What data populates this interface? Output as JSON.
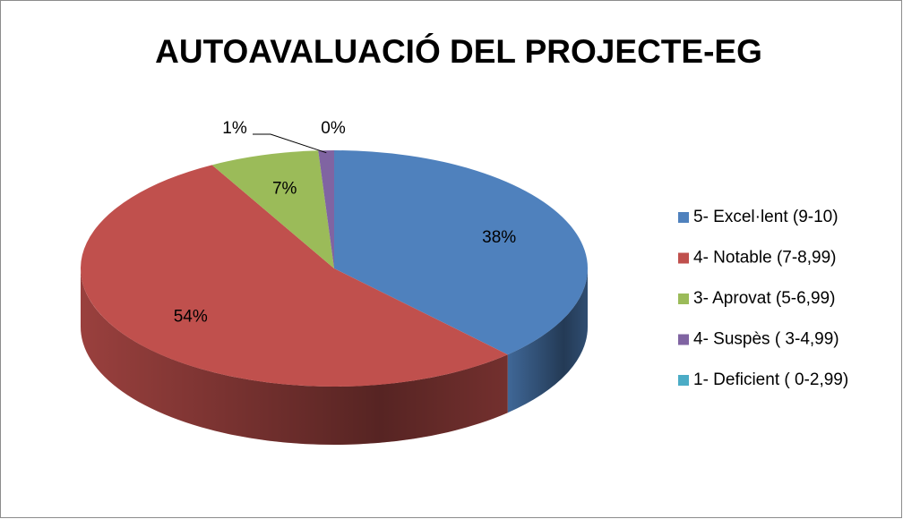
{
  "chart_data": {
    "type": "pie",
    "title": "AUTOAVALUACIÓ DEL PROJECTE-EG",
    "categories": [
      "5- Excel·lent (9-10)",
      "4- Notable (7-8,99)",
      "3- Aprovat (5-6,99)",
      "4- Suspès ( 3-4,99)",
      "1- Deficient ( 0-2,99)"
    ],
    "values": [
      38,
      54,
      7,
      1,
      0
    ],
    "value_labels": [
      "38%",
      "54%",
      "7%",
      "1%",
      "0%"
    ],
    "colors": [
      "#4f81bd",
      "#c0504d",
      "#9bbb59",
      "#8064a2",
      "#4bacc6"
    ],
    "legend": "right"
  }
}
